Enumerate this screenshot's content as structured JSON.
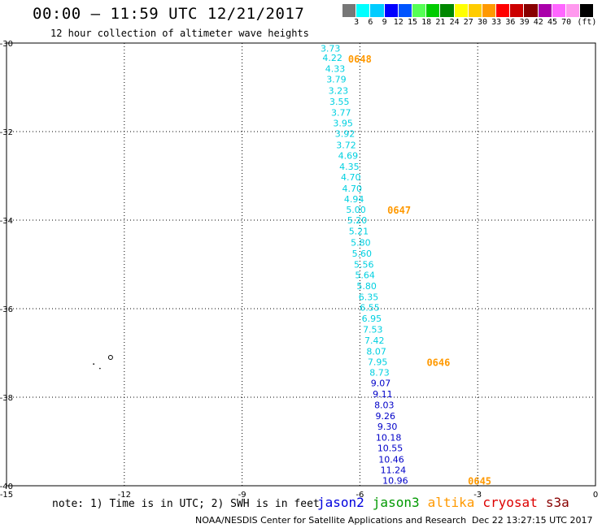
{
  "header": {
    "title": "00:00 – 11:59 UTC 12/21/2017",
    "subtitle": "12 hour collection of altimeter wave heights"
  },
  "colorbar": {
    "unit": "(ft)",
    "colors": [
      "#777777",
      "#00ffff",
      "#00ccff",
      "#0000ff",
      "#0055ff",
      "#55ff55",
      "#00cc00",
      "#008800",
      "#ffff00",
      "#ffcc00",
      "#ff9900",
      "#ff0000",
      "#cc0000",
      "#880000",
      "#aa00aa",
      "#ff66ff",
      "#ff99ee",
      "#000000"
    ],
    "labels": [
      "3",
      "6",
      "9",
      "12",
      "15",
      "18",
      "21",
      "24",
      "27",
      "30",
      "33",
      "36",
      "39",
      "42",
      "45",
      "70"
    ]
  },
  "map": {
    "lon_range": [
      -15,
      0
    ],
    "lat_range": [
      -40,
      -30
    ],
    "lon_ticks": [
      -15,
      -12,
      -9,
      -6,
      -3,
      0
    ],
    "lat_ticks": [
      -30,
      -32,
      -34,
      -36,
      -38,
      -40
    ],
    "lon_tick_labels": [
      "-15",
      "-12",
      "-9",
      "-6",
      "-3",
      "0"
    ],
    "lat_tick_labels": [
      "-30",
      "-32",
      "-34",
      "-36",
      "-38",
      "-40"
    ],
    "grid": "dotted",
    "colors": {
      "cyan": "#00d0e0",
      "blue": "#0000c8",
      "orange": "#ff9900"
    },
    "swh_points": [
      {
        "v": "3.73",
        "lat": -30.12,
        "lon": -6.75,
        "c": "cyan"
      },
      {
        "v": "4.22",
        "lat": -30.33,
        "lon": -6.7,
        "c": "cyan"
      },
      {
        "v": "4.33",
        "lat": -30.58,
        "lon": -6.63,
        "c": "cyan"
      },
      {
        "v": "3.79",
        "lat": -30.82,
        "lon": -6.6,
        "c": "cyan"
      },
      {
        "v": "3.23",
        "lat": -31.07,
        "lon": -6.55,
        "c": "cyan"
      },
      {
        "v": "3.55",
        "lat": -31.32,
        "lon": -6.52,
        "c": "cyan"
      },
      {
        "v": "3.77",
        "lat": -31.57,
        "lon": -6.48,
        "c": "cyan"
      },
      {
        "v": "3.95",
        "lat": -31.81,
        "lon": -6.43,
        "c": "cyan"
      },
      {
        "v": "3.92",
        "lat": -32.05,
        "lon": -6.38,
        "c": "cyan"
      },
      {
        "v": "3.72",
        "lat": -32.3,
        "lon": -6.35,
        "c": "cyan"
      },
      {
        "v": "4.69",
        "lat": -32.54,
        "lon": -6.3,
        "c": "cyan"
      },
      {
        "v": "4.35",
        "lat": -32.79,
        "lon": -6.27,
        "c": "cyan"
      },
      {
        "v": "4.70",
        "lat": -33.03,
        "lon": -6.23,
        "c": "cyan"
      },
      {
        "v": "4.70",
        "lat": -33.28,
        "lon": -6.2,
        "c": "cyan"
      },
      {
        "v": "4.94",
        "lat": -33.52,
        "lon": -6.15,
        "c": "cyan"
      },
      {
        "v": "5.00",
        "lat": -33.76,
        "lon": -6.1,
        "c": "cyan"
      },
      {
        "v": "5.20",
        "lat": -34.0,
        "lon": -6.07,
        "c": "cyan"
      },
      {
        "v": "5.21",
        "lat": -34.25,
        "lon": -6.03,
        "c": "cyan"
      },
      {
        "v": "5.80",
        "lat": -34.5,
        "lon": -5.98,
        "c": "cyan"
      },
      {
        "v": "5.60",
        "lat": -34.75,
        "lon": -5.95,
        "c": "cyan"
      },
      {
        "v": "5.56",
        "lat": -35.0,
        "lon": -5.9,
        "c": "cyan"
      },
      {
        "v": "5.64",
        "lat": -35.24,
        "lon": -5.87,
        "c": "cyan"
      },
      {
        "v": "5.80",
        "lat": -35.49,
        "lon": -5.83,
        "c": "cyan"
      },
      {
        "v": "6.35",
        "lat": -35.73,
        "lon": -5.78,
        "c": "cyan"
      },
      {
        "v": "6.55",
        "lat": -35.97,
        "lon": -5.75,
        "c": "cyan"
      },
      {
        "v": "6.95",
        "lat": -36.22,
        "lon": -5.7,
        "c": "cyan"
      },
      {
        "v": "7.53",
        "lat": -36.47,
        "lon": -5.67,
        "c": "cyan"
      },
      {
        "v": "7.42",
        "lat": -36.72,
        "lon": -5.63,
        "c": "cyan"
      },
      {
        "v": "8.07",
        "lat": -36.96,
        "lon": -5.58,
        "c": "cyan"
      },
      {
        "v": "7.95",
        "lat": -37.2,
        "lon": -5.55,
        "c": "cyan"
      },
      {
        "v": "8.73",
        "lat": -37.44,
        "lon": -5.5,
        "c": "cyan"
      },
      {
        "v": "9.07",
        "lat": -37.68,
        "lon": -5.47,
        "c": "blue"
      },
      {
        "v": "9.11",
        "lat": -37.93,
        "lon": -5.42,
        "c": "blue"
      },
      {
        "v": "8.03",
        "lat": -38.17,
        "lon": -5.38,
        "c": "blue"
      },
      {
        "v": "9.26",
        "lat": -38.42,
        "lon": -5.35,
        "c": "blue"
      },
      {
        "v": "9.30",
        "lat": -38.66,
        "lon": -5.3,
        "c": "blue"
      },
      {
        "v": "10.18",
        "lat": -38.91,
        "lon": -5.27,
        "c": "blue"
      },
      {
        "v": "10.55",
        "lat": -39.15,
        "lon": -5.23,
        "c": "blue"
      },
      {
        "v": "10.46",
        "lat": -39.4,
        "lon": -5.2,
        "c": "blue"
      },
      {
        "v": "11.24",
        "lat": -39.64,
        "lon": -5.15,
        "c": "blue"
      },
      {
        "v": "10.96",
        "lat": -39.88,
        "lon": -5.1,
        "c": "blue"
      }
    ],
    "time_labels": [
      {
        "t": "0648",
        "lat": -30.35,
        "lon": -6.3
      },
      {
        "t": "0647",
        "lat": -33.76,
        "lon": -5.3
      },
      {
        "t": "0646",
        "lat": -37.2,
        "lon": -4.3
      },
      {
        "t": "0645",
        "lat": -39.88,
        "lon": -3.25
      }
    ]
  },
  "note": "note: 1) Time is in UTC; 2) SWH is in feet",
  "satellites": [
    {
      "name": "jason2",
      "color": "#0000dd"
    },
    {
      "name": "jason3",
      "color": "#009900"
    },
    {
      "name": "altika",
      "color": "#ff9900"
    },
    {
      "name": "cryosat",
      "color": "#dd0000"
    },
    {
      "name": "s3a",
      "color": "#880000"
    }
  ],
  "footer": {
    "credit": "NOAA/NESDIS Center for Satellite Applications and Research",
    "timestamp": "Dec 22 13:27:15 UTC 2017"
  }
}
